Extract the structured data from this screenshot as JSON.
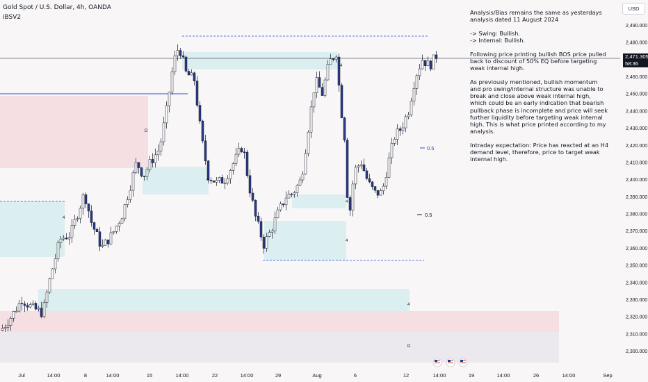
{
  "header": {
    "symbol_title": "Gold Spot / U.S. Dollar, 4h, OANDA",
    "indicator": "iBSV2",
    "currency_button": "USD"
  },
  "price_axis": {
    "labels": [
      "2,490.000",
      "2,480.000",
      "2,470.000",
      "2,460.000",
      "2,450.000",
      "2,440.000",
      "2,430.000",
      "2,420.000",
      "2,410.000",
      "2,400.000",
      "2,390.000",
      "2,380.000",
      "2,370.000",
      "2,360.000",
      "2,350.000",
      "2,340.000",
      "2,330.000",
      "2,320.000",
      "2,310.000",
      "2,300.000"
    ],
    "values": [
      2490,
      2480,
      2470,
      2460,
      2450,
      2440,
      2430,
      2420,
      2410,
      2400,
      2390,
      2380,
      2370,
      2360,
      2350,
      2340,
      2330,
      2320,
      2310,
      2300
    ],
    "current_price": "2,471.305",
    "countdown": "58:36"
  },
  "time_axis": {
    "labels": [
      "Jul",
      "14:00",
      "8",
      "14:00",
      "15",
      "14:00",
      "22",
      "14:00",
      "29",
      "Aug",
      "6",
      "12",
      "14:00",
      "19",
      "14:00",
      "26",
      "14:00",
      "Sep"
    ]
  },
  "annotations": {
    "analysis": {
      "line1": "Analysis/Bias remains the same as yesterdays",
      "line2": "analysis dated 11 August 2024",
      "swing": "-> Swing:  Bullish.",
      "internal": "-> Internal:  Bullish.",
      "para2": "Following price printing bullish BOS price pulled back to discount of 50% EQ before targeting weak internal high.",
      "para3": "As previously mentioned, bullish momentum and pro swing/internal structure was unable to break and close above weak internal high, which could be an early indication that bearish pullback phase is incomplete and price will seek further liquidity before targeting weak internal high.  This is what price printed according to my analysis.",
      "para4": "Intraday expectation: Price has reacted at an H4 demand level, therefore, price to target weak internal high."
    },
    "eq_label_1": "0.5",
    "eq_label_2": "0.5",
    "zone_marks": [
      "4",
      "4",
      "4",
      "4",
      "4",
      "4",
      "D",
      "D"
    ]
  },
  "colors": {
    "bull_candle": "#ffffff",
    "bear_candle": "#2a3a8c",
    "wick": "#131722",
    "supply_zone": "#f5dfe3",
    "demand_zone": "#dbeef0",
    "level_line": "#2b4ad4",
    "current_price_line": "#131722"
  },
  "icons": [
    "us-flag-icon",
    "us-flag-icon",
    "us-flag-icon"
  ]
}
